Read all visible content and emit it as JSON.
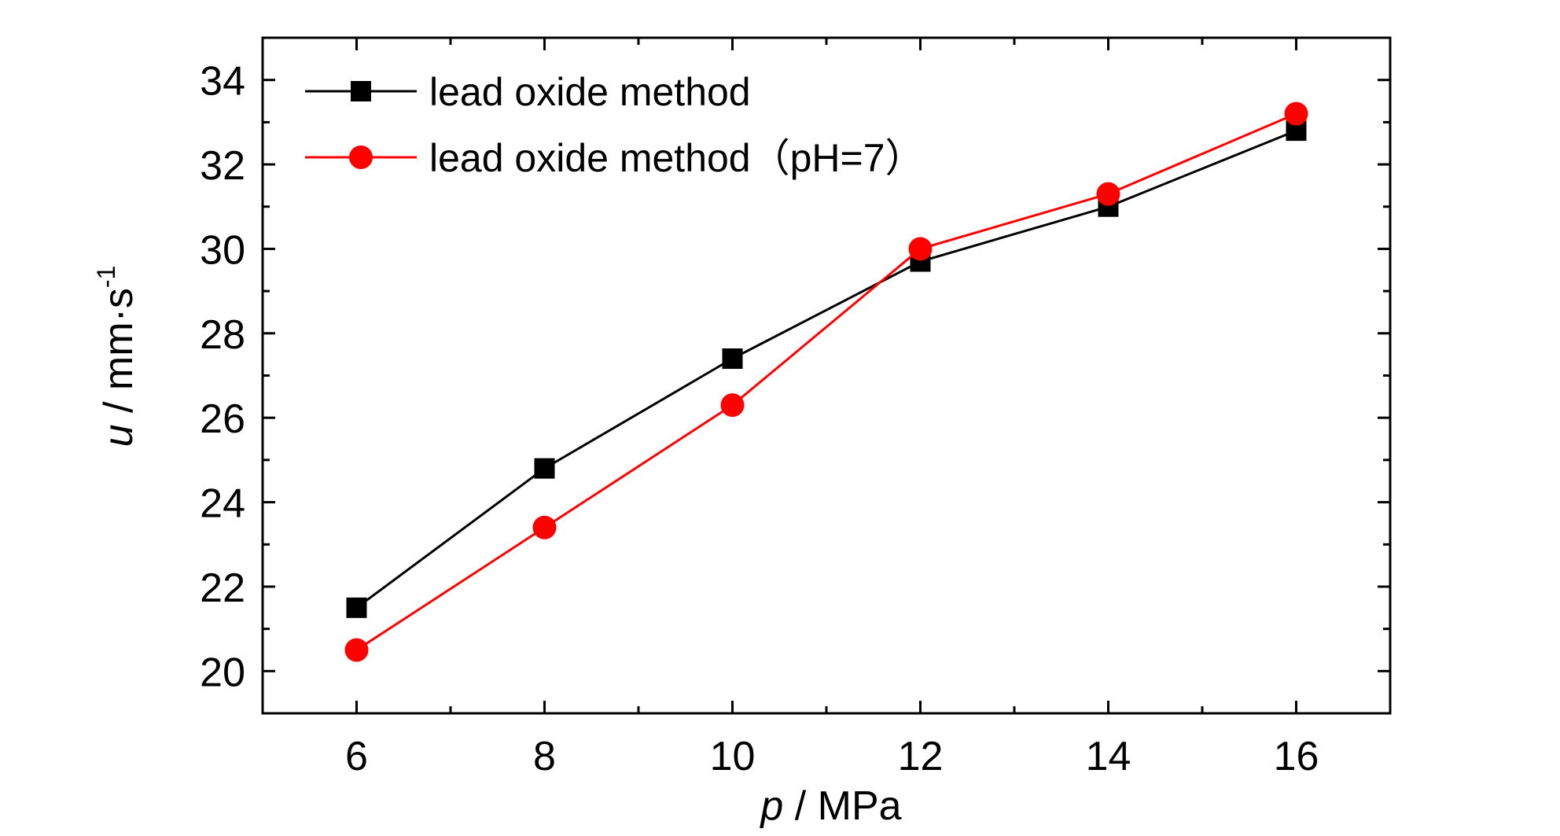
{
  "chart_data": {
    "type": "line",
    "xlabel_var": "p",
    "xlabel_unit": " / MPa",
    "ylabel_var": "u",
    "ylabel_unit": " / mm·s",
    "ylabel_sup": "-1",
    "x": [
      6,
      8,
      10,
      12,
      14,
      16
    ],
    "xlim": [
      5,
      17
    ],
    "ylim": [
      19,
      35
    ],
    "xticks": [
      6,
      8,
      10,
      12,
      14,
      16
    ],
    "yticks": [
      20,
      22,
      24,
      26,
      28,
      30,
      32,
      34
    ],
    "grid": false,
    "legend_position": "top-left",
    "series": [
      {
        "name": "lead oxide method",
        "color": "#000000",
        "marker": "square",
        "values": [
          21.5,
          24.8,
          27.4,
          29.7,
          31.0,
          32.8
        ]
      },
      {
        "name": "lead oxide method（pH=7）",
        "color": "#ff0000",
        "marker": "circle",
        "values": [
          20.5,
          23.4,
          26.3,
          30.0,
          31.3,
          33.2
        ]
      }
    ]
  }
}
